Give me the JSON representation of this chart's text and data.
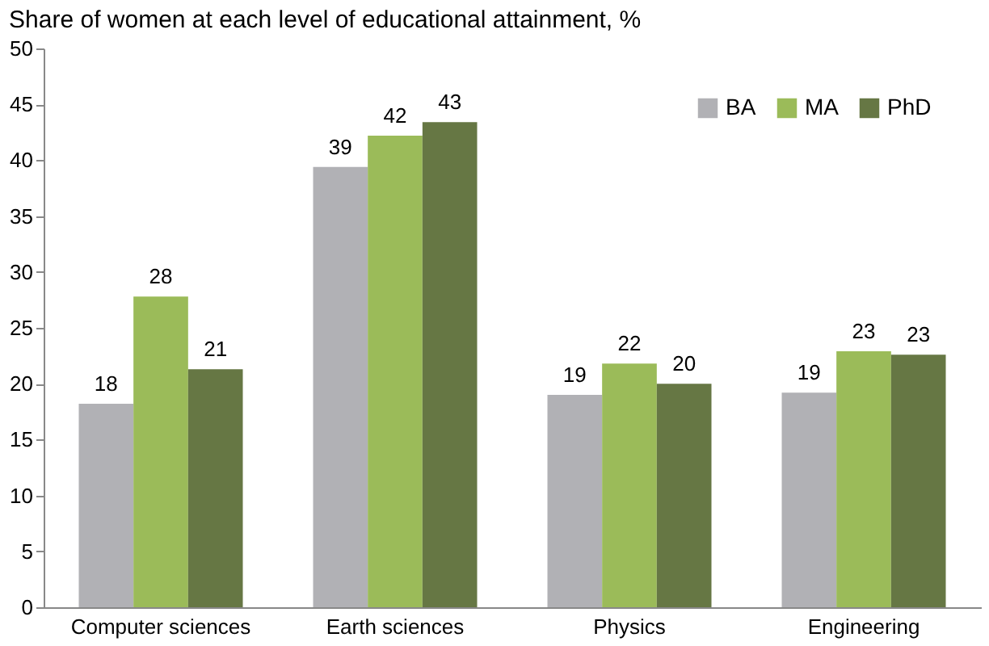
{
  "chart_data": {
    "type": "bar",
    "title": "Share of women at each level of educational attainment, %",
    "categories": [
      "Computer sciences",
      "Earth sciences",
      "Physics",
      "Engineering"
    ],
    "series": [
      {
        "name": "BA",
        "color": "#b1b1b5",
        "values": [
          18.2,
          39.4,
          19.0,
          19.2
        ],
        "value_labels": [
          "18",
          "39",
          "19",
          "19"
        ]
      },
      {
        "name": "MA",
        "color": "#9bbb59",
        "values": [
          27.8,
          42.2,
          21.8,
          22.9
        ],
        "value_labels": [
          "28",
          "42",
          "22",
          "23"
        ]
      },
      {
        "name": "PhD",
        "color": "#667744",
        "values": [
          21.3,
          43.4,
          20.0,
          22.6
        ],
        "value_labels": [
          "21",
          "43",
          "20",
          "23"
        ]
      }
    ],
    "ylim": [
      0,
      50
    ],
    "yticks": [
      0,
      5,
      10,
      15,
      20,
      25,
      30,
      35,
      40,
      45,
      50
    ],
    "grid": false,
    "legend": "top right"
  }
}
